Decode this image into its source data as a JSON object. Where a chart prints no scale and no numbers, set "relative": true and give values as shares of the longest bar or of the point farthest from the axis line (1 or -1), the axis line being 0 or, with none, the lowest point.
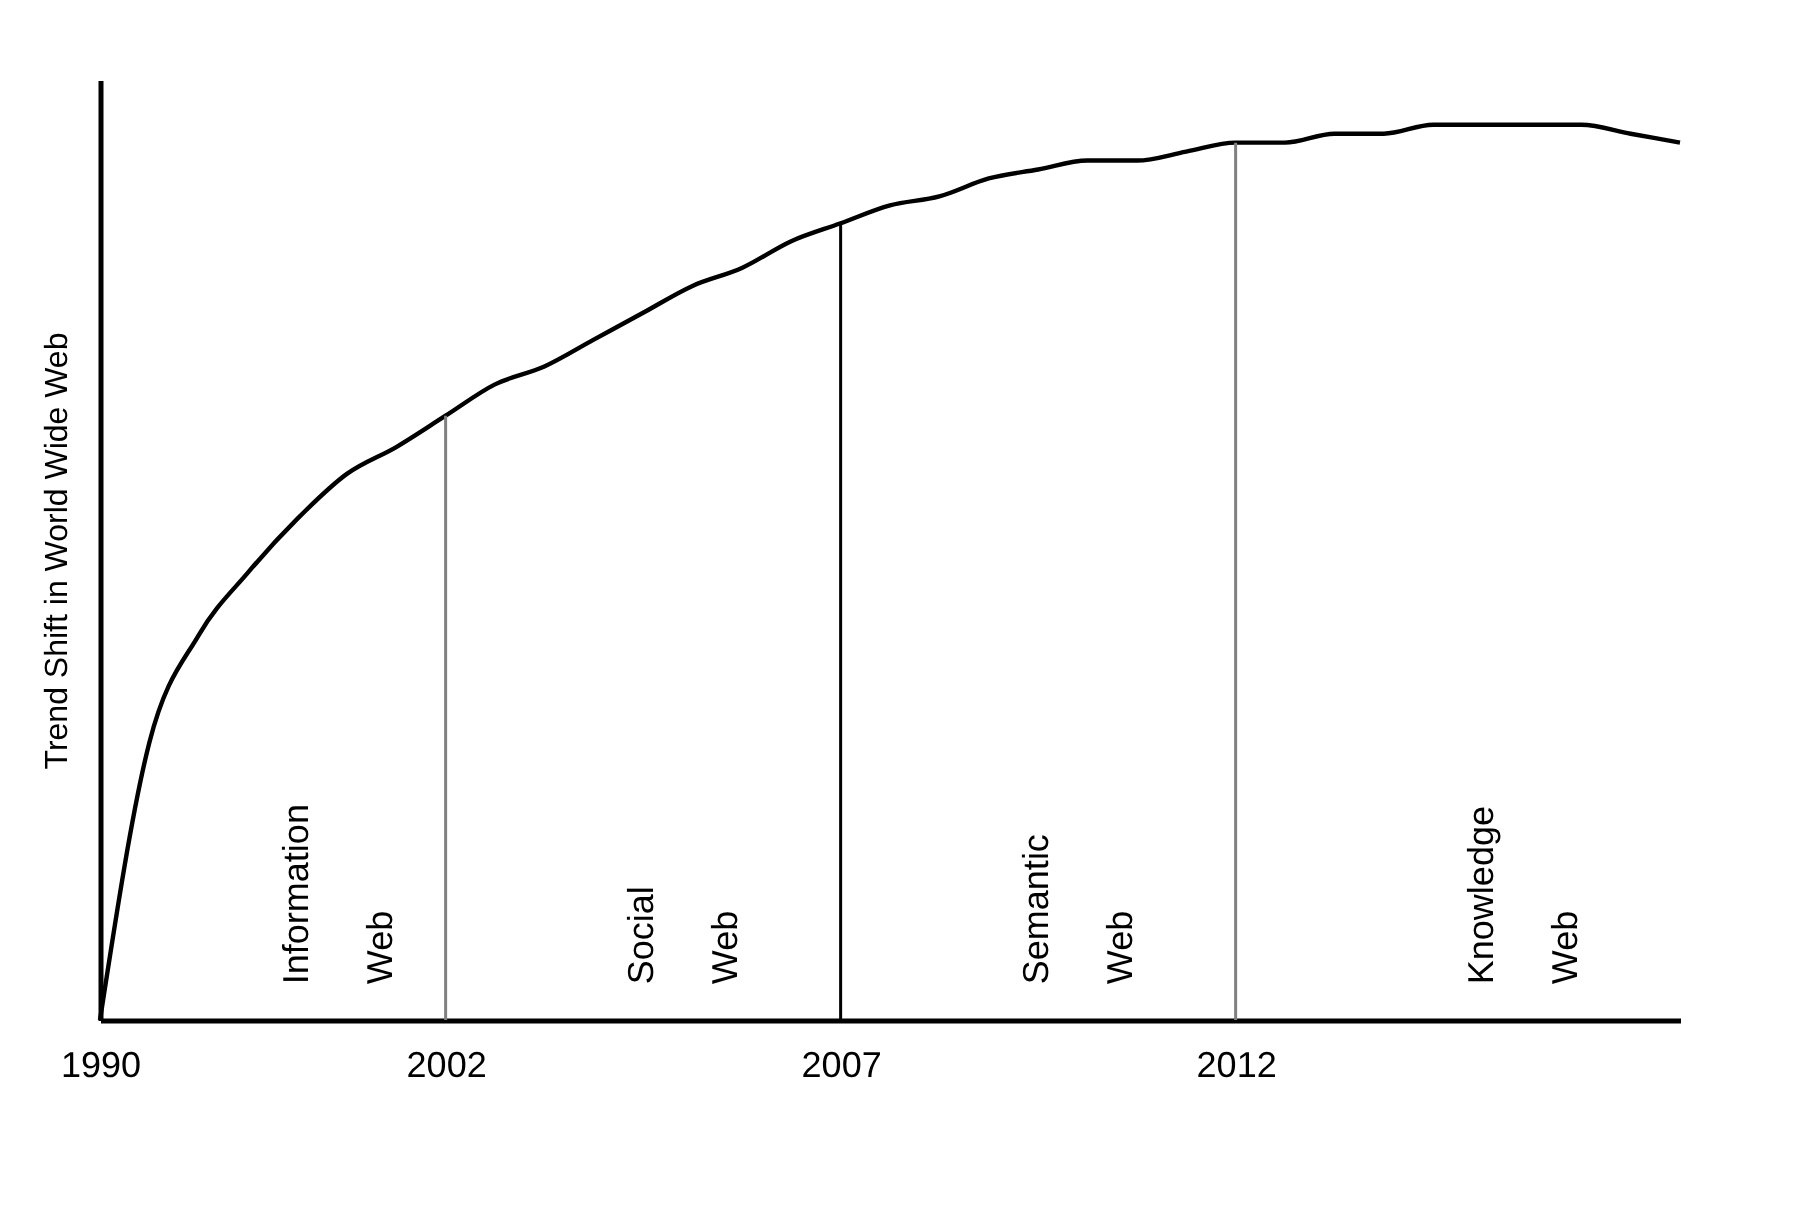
{
  "chart_data": {
    "type": "line",
    "relative": true,
    "ylabel": "Trend  Shift  in  World Wide Web",
    "categories": [
      "1990",
      null,
      null,
      null,
      null,
      null,
      null,
      "2002",
      null,
      null,
      null,
      null,
      null,
      null,
      null,
      "2007",
      null,
      null,
      null,
      null,
      null,
      null,
      null,
      "2012",
      null,
      null,
      null,
      null,
      null,
      null,
      null,
      null,
      null
    ],
    "series": [
      {
        "color": "#000000",
        "values": [
          0,
          0.31,
          0.43,
          0.5,
          0.56,
          0.61,
          0.64,
          0.675,
          0.71,
          0.73,
          0.76,
          0.79,
          0.82,
          0.84,
          0.87,
          0.89,
          0.91,
          0.92,
          0.94,
          0.95,
          0.96,
          0.96,
          0.97,
          0.98,
          0.98,
          0.99,
          0.99,
          1,
          1,
          1,
          1,
          0.99,
          0.98
        ]
      }
    ],
    "ref_lines": [
      {
        "axis": "x",
        "value": "2002",
        "color": "#808080"
      },
      {
        "axis": "x",
        "value": "2007",
        "color": "#000000"
      },
      {
        "axis": "x",
        "value": "2012",
        "color": "#808080"
      }
    ],
    "annotations": [
      "Information Web",
      "Social Web",
      "Semantic Web",
      "Knowledge Web"
    ],
    "grid": false,
    "marker": "none"
  }
}
